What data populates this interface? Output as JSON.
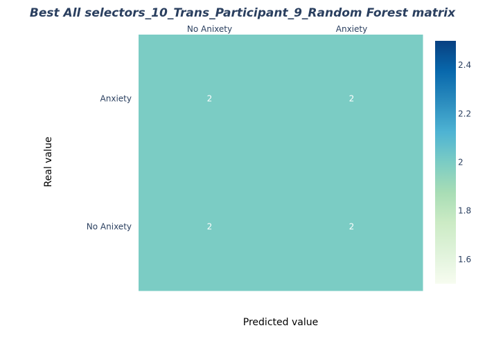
{
  "chart_data": {
    "type": "heatmap",
    "title": "Best All selectors_10_Trans_Participant_9_Random Forest matrix",
    "xlabel": "Predicted value",
    "ylabel": "Real value",
    "x_categories": [
      "No Anixety",
      "Anxiety"
    ],
    "y_categories": [
      "Anxiety",
      "No Anixety"
    ],
    "values": [
      [
        2,
        2
      ],
      [
        2,
        2
      ]
    ],
    "cell_text": [
      [
        "2",
        "2"
      ],
      [
        "2",
        "2"
      ]
    ],
    "x_tick_position": "top",
    "colorscale": "GnBu",
    "colorscale_stops": [
      "#f7fcf0",
      "#e0f3db",
      "#ccebc5",
      "#a8ddb5",
      "#7bccc4",
      "#4eb3d3",
      "#2b8cbe",
      "#0868ac",
      "#084081"
    ],
    "cell_color": "#7bccc4",
    "colorbar": {
      "range": [
        1.5,
        2.5
      ],
      "ticks": [
        1.6,
        1.8,
        2,
        2.2,
        2.4
      ],
      "tick_labels": [
        "1.6",
        "1.8",
        "2",
        "2.2",
        "2.4"
      ]
    }
  }
}
